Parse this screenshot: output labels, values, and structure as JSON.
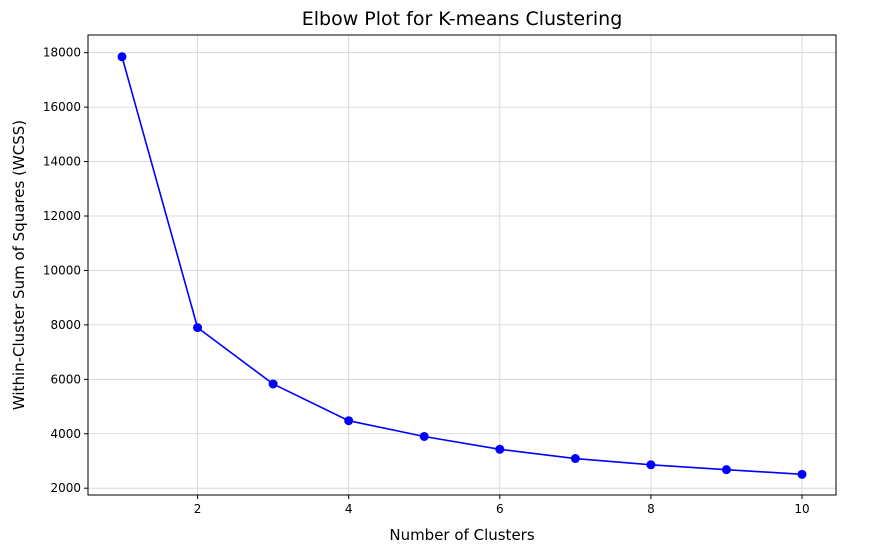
{
  "chart_data": {
    "type": "line",
    "title": "Elbow Plot for K-means Clustering",
    "xlabel": "Number of Clusters",
    "ylabel": "Within-Cluster Sum of Squares (WCSS)",
    "x": [
      1,
      2,
      3,
      4,
      5,
      6,
      7,
      8,
      9,
      10
    ],
    "series": [
      {
        "values": [
          17850,
          7900,
          5830,
          4480,
          3900,
          3430,
          3090,
          2860,
          2680,
          2510
        ],
        "color": "#0000ff",
        "marker": "circle"
      }
    ],
    "xlim": [
      0.55,
      10.45
    ],
    "ylim": [
      1750,
      18650
    ],
    "xticks": [
      2,
      4,
      6,
      8,
      10
    ],
    "yticks": [
      2000,
      4000,
      6000,
      8000,
      10000,
      12000,
      14000,
      16000,
      18000
    ],
    "grid": true,
    "legend": "none"
  }
}
